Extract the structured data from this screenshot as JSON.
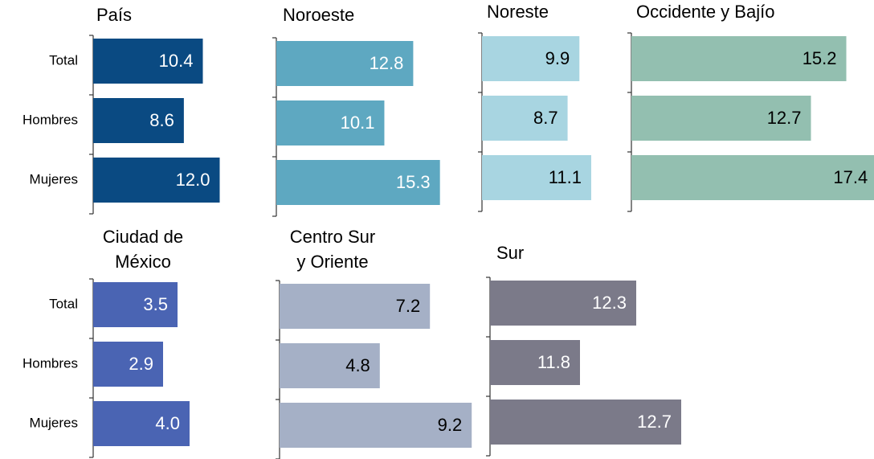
{
  "chart_data": [
    {
      "type": "bar",
      "orientation": "horizontal",
      "title": [
        "País"
      ],
      "categories": [
        "Total",
        "Hombres",
        "Mujeres"
      ],
      "values": [
        10.4,
        8.6,
        12.0
      ],
      "value_labels": [
        "10.4",
        "8.6",
        "12.0"
      ],
      "color": "#0a4a82",
      "label_color": "#ffffff",
      "xlim": [
        0,
        16
      ]
    },
    {
      "type": "bar",
      "orientation": "horizontal",
      "title": [
        "Noroeste"
      ],
      "values": [
        12.8,
        10.1,
        15.3
      ],
      "value_labels": [
        "12.8",
        "10.1",
        "15.3"
      ],
      "color": "#5ea8c1",
      "label_color": "#ffffff",
      "xlim": [
        0,
        16
      ]
    },
    {
      "type": "bar",
      "orientation": "horizontal",
      "title": [
        "Noreste"
      ],
      "values": [
        9.9,
        8.7,
        11.1
      ],
      "value_labels": [
        "9.9",
        "8.7",
        "11.1"
      ],
      "color": "#a8d5e1",
      "label_color": "#000000",
      "xlim": [
        0,
        16
      ]
    },
    {
      "type": "bar",
      "orientation": "horizontal",
      "title": [
        "Occidente y Bajío"
      ],
      "values": [
        15.2,
        12.7,
        17.4
      ],
      "value_labels": [
        "15.2",
        "12.7",
        "17.4"
      ],
      "color": "#93bfb0",
      "label_color": "#000000",
      "xlim": [
        0,
        20
      ]
    },
    {
      "type": "bar",
      "orientation": "horizontal",
      "title": [
        "Ciudad de",
        "México"
      ],
      "categories": [
        "Total",
        "Hombres",
        "Mujeres"
      ],
      "values": [
        3.5,
        2.9,
        4.0
      ],
      "value_labels": [
        "3.5",
        "2.9",
        "4.0"
      ],
      "color": "#4a64b3",
      "label_color": "#ffffff",
      "xlim": [
        0,
        5
      ]
    },
    {
      "type": "bar",
      "orientation": "horizontal",
      "title": [
        "Centro Sur",
        "y Oriente"
      ],
      "values": [
        7.2,
        4.8,
        9.2
      ],
      "value_labels": [
        "7.2",
        "4.8",
        "9.2"
      ],
      "color": "#a5b0c6",
      "label_color": "#000000",
      "xlim": [
        0,
        10
      ]
    },
    {
      "type": "bar",
      "orientation": "horizontal",
      "title": [
        "Sur"
      ],
      "values": [
        12.3,
        11.8,
        12.7
      ],
      "value_labels": [
        "12.3",
        "11.8",
        "12.7"
      ],
      "color": "#7b7a89",
      "label_color": "#ffffff",
      "xlim": [
        11,
        13
      ]
    }
  ]
}
